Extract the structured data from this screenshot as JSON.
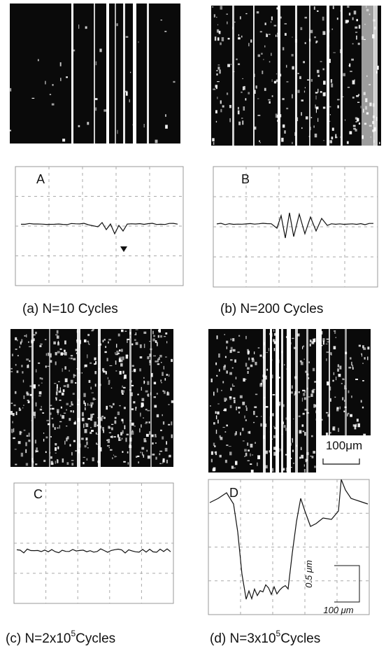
{
  "panels": [
    {
      "label": "A",
      "caption": {
        "letter": "(a)",
        "text": "N=10 Cycles"
      }
    },
    {
      "label": "B",
      "caption": {
        "letter": "(b)",
        "text": "N=200 Cycles"
      }
    },
    {
      "label": "C",
      "caption": {
        "letter": "(c)",
        "text": "N=2x10",
        "sup": "5",
        "tail": "Cycles"
      }
    },
    {
      "label": "D",
      "caption": {
        "letter": "(d)",
        "text": "N=3x10",
        "sup": "5",
        "tail": "Cycles"
      }
    }
  ],
  "scale_bar": "100μm",
  "profile_scale": {
    "vertical": "0.5 μm",
    "horizontal": "100 μm"
  }
}
